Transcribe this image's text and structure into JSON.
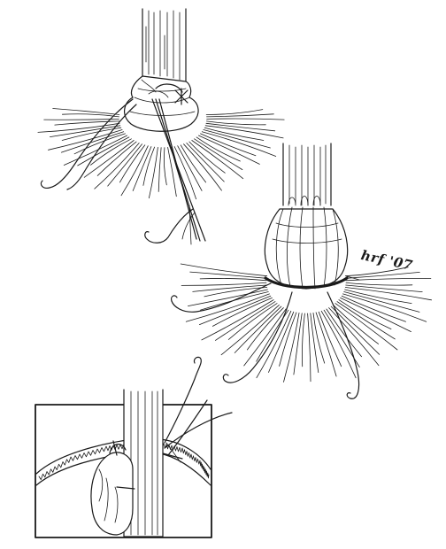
{
  "signature": {
    "text": "hrf '07"
  },
  "colors": {
    "ink": "#1a1a1a",
    "background": "#ffffff"
  },
  "panels": {
    "top_figure": "suture-placement-step",
    "middle_figure": "tied-cuff-step",
    "inset_figure": "cross-section-inset"
  }
}
